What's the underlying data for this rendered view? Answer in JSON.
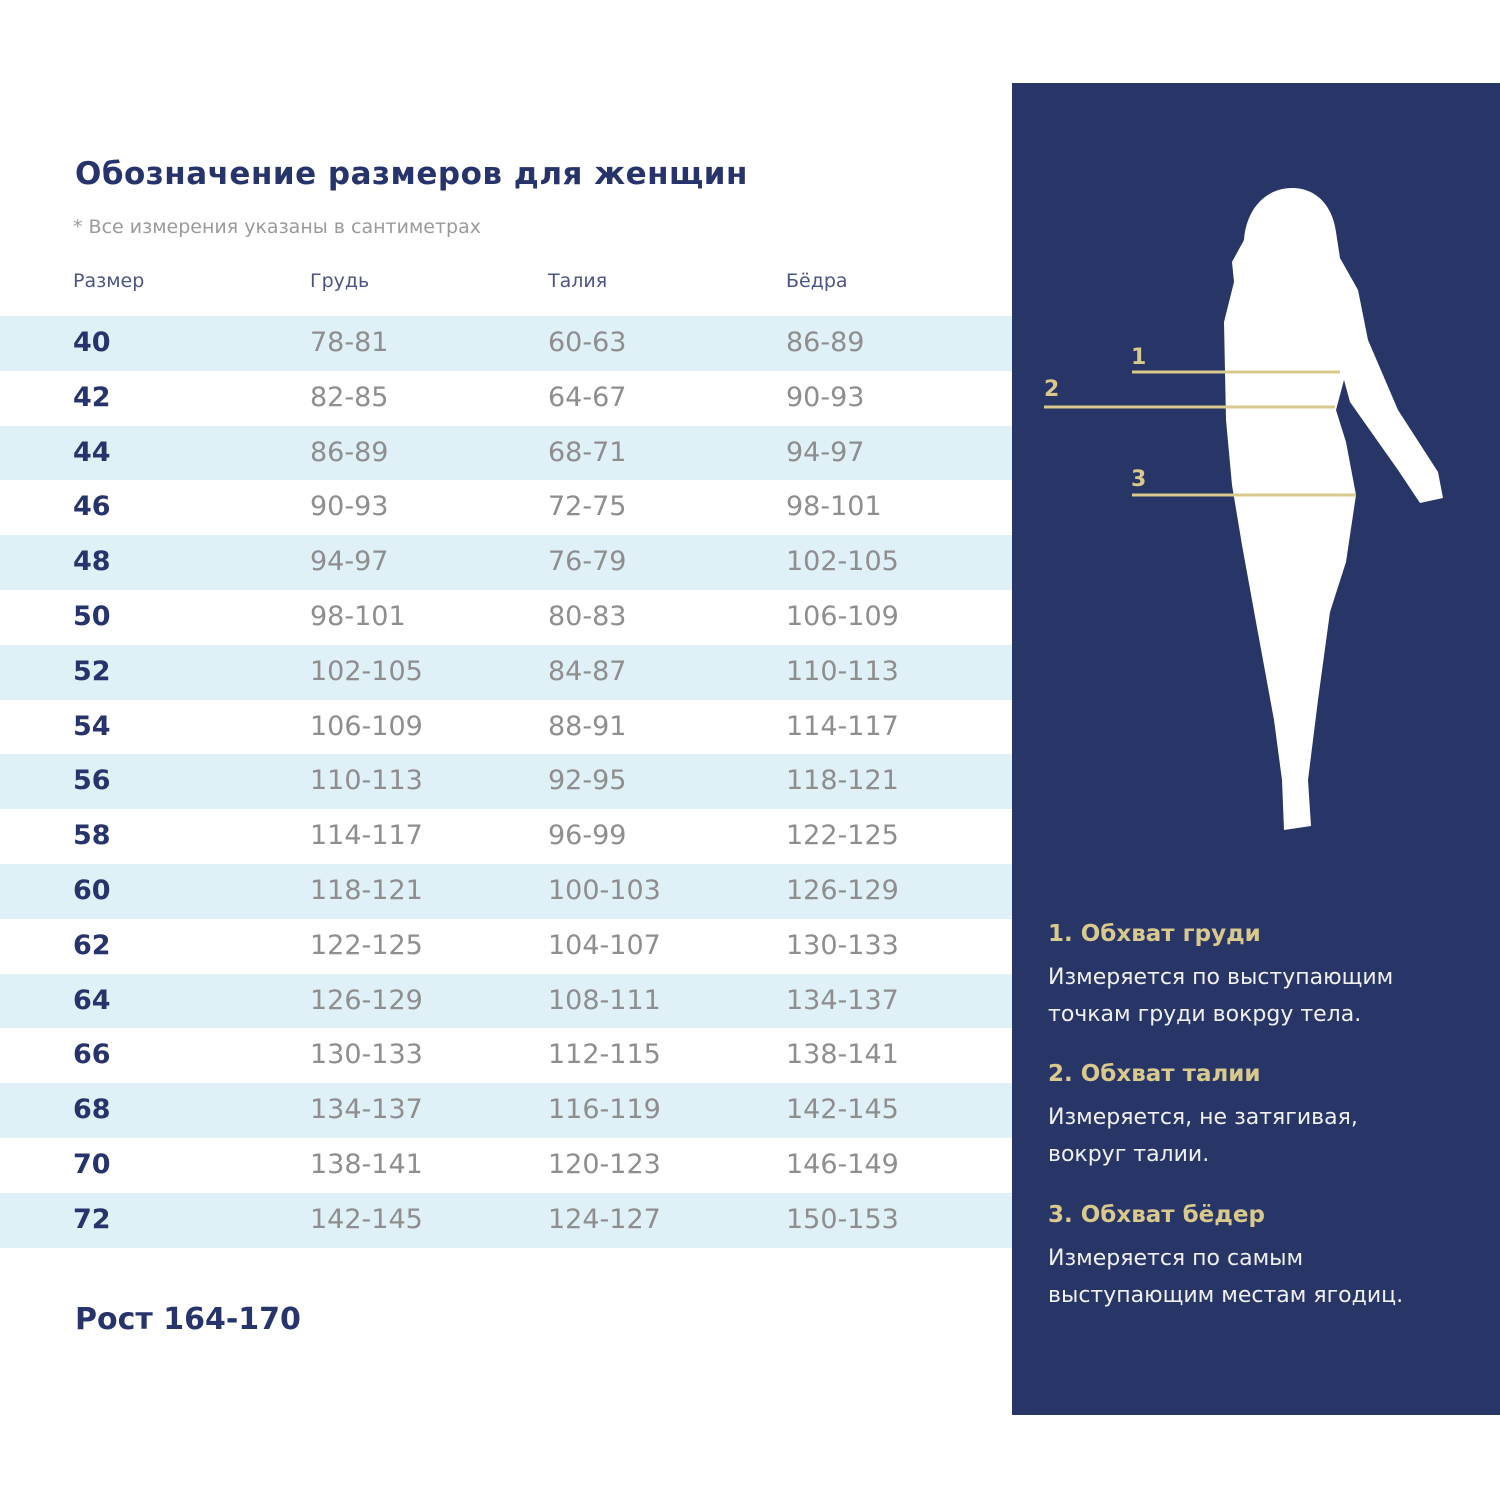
{
  "title": "Обозначение размеров для женщин",
  "note": "* Все измерения указаны в сантиметрах",
  "columns": [
    "Размер",
    "Грудь",
    "Талия",
    "Бёдра"
  ],
  "rows": [
    [
      "40",
      "78-81",
      "60-63",
      "86-89"
    ],
    [
      "42",
      "82-85",
      "64-67",
      "90-93"
    ],
    [
      "44",
      "86-89",
      "68-71",
      "94-97"
    ],
    [
      "46",
      "90-93",
      "72-75",
      "98-101"
    ],
    [
      "48",
      "94-97",
      "76-79",
      "102-105"
    ],
    [
      "50",
      "98-101",
      "80-83",
      "106-109"
    ],
    [
      "52",
      "102-105",
      "84-87",
      "110-113"
    ],
    [
      "54",
      "106-109",
      "88-91",
      "114-117"
    ],
    [
      "56",
      "110-113",
      "92-95",
      "118-121"
    ],
    [
      "58",
      "114-117",
      "96-99",
      "122-125"
    ],
    [
      "60",
      "118-121",
      "100-103",
      "126-129"
    ],
    [
      "62",
      "122-125",
      "104-107",
      "130-133"
    ],
    [
      "64",
      "126-129",
      "108-111",
      "134-137"
    ],
    [
      "66",
      "130-133",
      "112-115",
      "138-141"
    ],
    [
      "68",
      "134-137",
      "116-119",
      "142-145"
    ],
    [
      "70",
      "138-141",
      "120-123",
      "146-149"
    ],
    [
      "72",
      "142-145",
      "124-127",
      "150-153"
    ]
  ],
  "height_label": "Рост 164-170",
  "figure": {
    "markers": [
      "1",
      "2",
      "3"
    ]
  },
  "measurements": [
    {
      "title": "1. Обхват груди",
      "lines": [
        "Измеряется по  выступающим",
        "точкам груди вокрgу тела."
      ]
    },
    {
      "title": "2. Обхват талии",
      "lines": [
        "Измеряется, не затягивая,",
        "вокруг талии."
      ]
    },
    {
      "title": "3. Обхват бёдер",
      "lines": [
        "Измеряется по самым",
        "выступающим местам ягодиц."
      ]
    }
  ],
  "colors": {
    "navy": "#283567",
    "gold": "#d9c98c",
    "row_alt": "#dff0f7",
    "title": "#27346b"
  }
}
